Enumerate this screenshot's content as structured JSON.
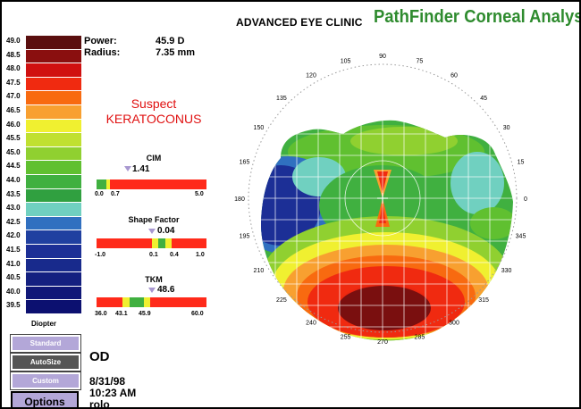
{
  "header": {
    "clinic": "ADVANCED EYE CLINIC",
    "app_title": "PathFinder Corneal Analysis"
  },
  "scale": {
    "unit_label": "Diopter",
    "rows": [
      {
        "label": "49.0",
        "color": "#5a0f0f"
      },
      {
        "label": "48.5",
        "color": "#8a0f0f"
      },
      {
        "label": "48.0",
        "color": "#d01010"
      },
      {
        "label": "47.5",
        "color": "#f02a10"
      },
      {
        "label": "47.0",
        "color": "#f86a10"
      },
      {
        "label": "46.5",
        "color": "#f8a030"
      },
      {
        "label": "46.0",
        "color": "#f0f030"
      },
      {
        "label": "45.5",
        "color": "#c0e030"
      },
      {
        "label": "45.0",
        "color": "#90d030"
      },
      {
        "label": "44.5",
        "color": "#60c030"
      },
      {
        "label": "44.0",
        "color": "#40b040"
      },
      {
        "label": "43.5",
        "color": "#30a040"
      },
      {
        "label": "43.0",
        "color": "#70d0c0"
      },
      {
        "label": "42.5",
        "color": "#3070c0"
      },
      {
        "label": "42.0",
        "color": "#2040a0"
      },
      {
        "label": "41.5",
        "color": "#1c2f96"
      },
      {
        "label": "41.0",
        "color": "#182a8c"
      },
      {
        "label": "40.5",
        "color": "#142080"
      },
      {
        "label": "40.0",
        "color": "#101878"
      },
      {
        "label": "39.5",
        "color": "#0c1070"
      }
    ]
  },
  "readout": {
    "power_label": "Power:",
    "power_value": "45.9 D",
    "radius_label": "Radius:",
    "radius_value": "7.35 mm"
  },
  "diagnosis": {
    "line1": "Suspect",
    "line2": "KERATOCONUS"
  },
  "indices": {
    "cim": {
      "title": "CIM",
      "value": "1.41",
      "ticks": [
        "0.0",
        "0.7",
        "5.0"
      ]
    },
    "shape": {
      "title": "Shape Factor",
      "value": "0.04",
      "ticks": [
        "-1.0",
        "0.1",
        "0.4",
        "1.0"
      ]
    },
    "tkm": {
      "title": "TKM",
      "value": "48.6",
      "ticks": [
        "36.0",
        "43.1",
        "45.9",
        "60.0"
      ]
    }
  },
  "buttons": {
    "standard": "Standard",
    "autosize": "AutoSize",
    "custom": "Custom",
    "options": "Options"
  },
  "exam": {
    "eye": "OD",
    "date": "8/31/98",
    "time": "10:23 AM",
    "operator": "rolo"
  },
  "map": {
    "axis_labels": [
      "0",
      "15",
      "30",
      "45",
      "60",
      "75",
      "90",
      "105",
      "120",
      "135",
      "150",
      "165",
      "180",
      "195",
      "210",
      "225",
      "240",
      "255",
      "270",
      "285",
      "300",
      "315",
      "330",
      "345"
    ]
  }
}
